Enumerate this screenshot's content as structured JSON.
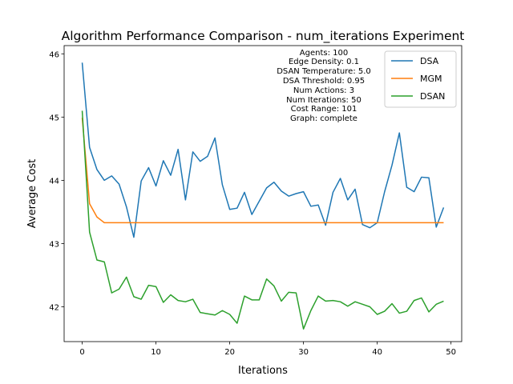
{
  "chart_data": {
    "type": "line",
    "title": "Algorithm Performance Comparison - num_iterations Experiment",
    "xlabel": "Iterations",
    "ylabel": "Average Cost",
    "xlim": [
      -2.45,
      51.45
    ],
    "ylim": [
      41.45,
      46.13
    ],
    "xticks": [
      "0",
      "10",
      "20",
      "30",
      "40",
      "50"
    ],
    "yticks": [
      "42",
      "43",
      "44",
      "45",
      "46"
    ],
    "grid": false,
    "legend_position": "top-right",
    "annotation_lines": [
      "Agents: 100",
      "Edge Density: 0.1",
      "DSAN Temperature: 5.0",
      "DSA Threshold: 0.95",
      "Num Actions: 3",
      "Num Iterations: 50",
      "Cost Range: 101",
      "Graph: complete"
    ],
    "x": [
      0,
      1,
      2,
      3,
      4,
      5,
      6,
      7,
      8,
      9,
      10,
      11,
      12,
      13,
      14,
      15,
      16,
      17,
      18,
      19,
      20,
      21,
      22,
      23,
      24,
      25,
      26,
      27,
      28,
      29,
      30,
      31,
      32,
      33,
      34,
      35,
      36,
      37,
      38,
      39,
      40,
      41,
      42,
      43,
      44,
      45,
      46,
      47,
      48,
      49
    ],
    "series": [
      {
        "name": "DSA",
        "color": "#1f77b4",
        "values": [
          45.86,
          44.52,
          44.17,
          44.0,
          44.07,
          43.94,
          43.58,
          43.1,
          43.99,
          44.2,
          43.91,
          44.31,
          44.08,
          44.49,
          43.69,
          44.45,
          44.3,
          44.38,
          44.67,
          43.93,
          43.54,
          43.56,
          43.81,
          43.46,
          43.67,
          43.88,
          43.97,
          43.83,
          43.75,
          43.79,
          43.82,
          43.59,
          43.61,
          43.29,
          43.81,
          44.03,
          43.69,
          43.86,
          43.3,
          43.25,
          43.33,
          43.82,
          44.24,
          44.75,
          43.89,
          43.82,
          44.05,
          44.04,
          43.26,
          43.57
        ]
      },
      {
        "name": "MGM",
        "color": "#ff7f0e",
        "values": [
          44.99,
          43.63,
          43.42,
          43.33,
          43.33,
          43.33,
          43.33,
          43.33,
          43.33,
          43.33,
          43.33,
          43.33,
          43.33,
          43.33,
          43.33,
          43.33,
          43.33,
          43.33,
          43.33,
          43.33,
          43.33,
          43.33,
          43.33,
          43.33,
          43.33,
          43.33,
          43.33,
          43.33,
          43.33,
          43.33,
          43.33,
          43.33,
          43.33,
          43.33,
          43.33,
          43.33,
          43.33,
          43.33,
          43.33,
          43.33,
          43.33,
          43.33,
          43.33,
          43.33,
          43.33,
          43.33,
          43.33,
          43.33,
          43.33,
          43.33
        ]
      },
      {
        "name": "DSAN",
        "color": "#2ca02c",
        "values": [
          45.1,
          43.18,
          42.74,
          42.71,
          42.22,
          42.28,
          42.47,
          42.16,
          42.12,
          42.34,
          42.32,
          42.07,
          42.19,
          42.1,
          42.08,
          42.12,
          41.91,
          41.89,
          41.87,
          41.94,
          41.88,
          41.74,
          42.17,
          42.11,
          42.11,
          42.44,
          42.33,
          42.09,
          42.23,
          42.22,
          41.65,
          41.94,
          42.17,
          42.09,
          42.1,
          42.08,
          42.01,
          42.08,
          42.04,
          42.0,
          41.88,
          41.93,
          42.05,
          41.9,
          41.93,
          42.1,
          42.14,
          41.92,
          42.04,
          42.09
        ]
      }
    ]
  }
}
